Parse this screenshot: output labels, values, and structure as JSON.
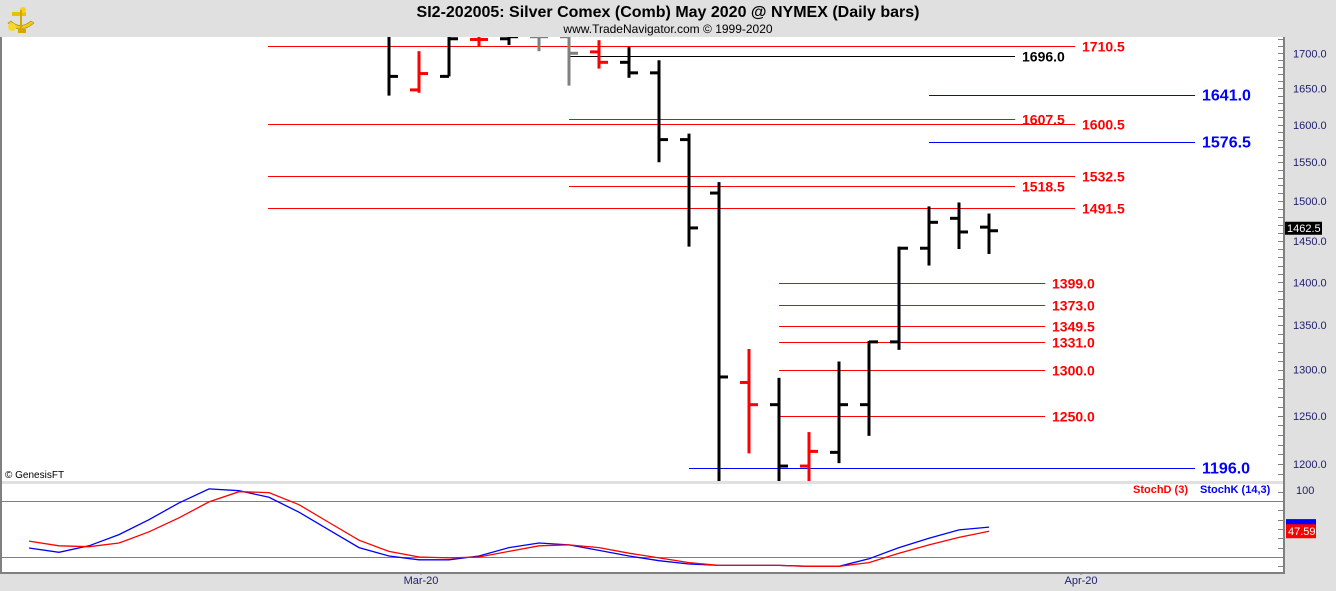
{
  "header": {
    "title": "SI2-202005:  Silver Comex (Comb) May 2020 @ NYMEX  (Daily bars)",
    "subtitle": "www.TradeNavigator.com © 1999-2020",
    "logo_icon": "sextant-logo-icon"
  },
  "copyright": "© GenesisFT",
  "colors": {
    "up_bar": "#000000",
    "down_bar": "#ff0000",
    "neutral_bar": "#808080",
    "support": "#ff0000",
    "blue_level": "#0000ff",
    "stoch_k": "#0000ff",
    "stoch_d": "#ff0000",
    "axis_text": "#202070"
  },
  "chart_data": [
    {
      "type": "ohlc",
      "scale": "log",
      "ylim": [
        1183,
        1724
      ],
      "y_ticks": [
        "1700.0",
        "1650.0",
        "1600.0",
        "1550.0",
        "1500.0",
        "1450.0",
        "1400.0",
        "1350.0",
        "1300.0",
        "1250.0",
        "1200.0"
      ],
      "x_tick_labels": [
        {
          "label": "Mar-20",
          "bar_index": 1
        },
        {
          "label": "Apr-20",
          "bar_index": 23
        }
      ],
      "last_price": "1462.5",
      "bars": [
        {
          "o": 1730,
          "h": 1735,
          "l": 1640,
          "c": 1667,
          "color": "black"
        },
        {
          "o": 1648,
          "h": 1703,
          "l": 1644,
          "c": 1671,
          "color": "red"
        },
        {
          "o": 1667,
          "h": 1724,
          "l": 1667,
          "c": 1721,
          "color": "black"
        },
        {
          "o": 1720,
          "h": 1724,
          "l": 1709,
          "c": 1720,
          "color": "red"
        },
        {
          "o": 1721,
          "h": 1724,
          "l": 1712,
          "c": 1724,
          "color": "black"
        },
        {
          "o": 1724,
          "h": 1724,
          "l": 1703,
          "c": 1724,
          "color": "gray"
        },
        {
          "o": 1724,
          "h": 1724,
          "l": 1654,
          "c": 1700,
          "color": "gray"
        },
        {
          "o": 1702,
          "h": 1719,
          "l": 1678,
          "c": 1687,
          "color": "red"
        },
        {
          "o": 1687,
          "h": 1709,
          "l": 1665,
          "c": 1672,
          "color": "black"
        },
        {
          "o": 1672,
          "h": 1690,
          "l": 1550,
          "c": 1580,
          "color": "black"
        },
        {
          "o": 1580,
          "h": 1588,
          "l": 1443,
          "c": 1466,
          "color": "black"
        },
        {
          "o": 1510,
          "h": 1524,
          "l": 1170,
          "c": 1292,
          "color": "black"
        },
        {
          "o": 1286,
          "h": 1323,
          "l": 1211,
          "c": 1262,
          "color": "red"
        },
        {
          "o": 1262,
          "h": 1291,
          "l": 1170,
          "c": 1198,
          "color": "black"
        },
        {
          "o": 1198,
          "h": 1233,
          "l": 1170,
          "c": 1213,
          "color": "red"
        },
        {
          "o": 1212,
          "h": 1309,
          "l": 1201,
          "c": 1262,
          "color": "black"
        },
        {
          "o": 1262,
          "h": 1332,
          "l": 1229,
          "c": 1331,
          "color": "black"
        },
        {
          "o": 1331,
          "h": 1443,
          "l": 1322,
          "c": 1441,
          "color": "black"
        },
        {
          "o": 1441,
          "h": 1493,
          "l": 1420,
          "c": 1473,
          "color": "black"
        },
        {
          "o": 1478,
          "h": 1498,
          "l": 1440,
          "c": 1461,
          "color": "black"
        },
        {
          "o": 1467,
          "h": 1484,
          "l": 1434,
          "c": 1462.5,
          "color": "black"
        }
      ],
      "levels": [
        {
          "value": 1710.5,
          "label": "1710.5",
          "color": "red",
          "start_bar": -4,
          "group": "far"
        },
        {
          "value": 1696.0,
          "label": "1696.0",
          "color": "black",
          "start_bar": 6,
          "group": "mid"
        },
        {
          "value": 1641.0,
          "label": "1641.0",
          "color": "blue",
          "start_bar": 18,
          "group": "blue"
        },
        {
          "value": 1607.5,
          "label": "1607.5",
          "color": "red",
          "start_bar": 6,
          "group": "mid"
        },
        {
          "value": 1600.5,
          "label": "1600.5",
          "color": "red",
          "start_bar": -4,
          "group": "far"
        },
        {
          "value": 1576.5,
          "label": "1576.5",
          "color": "blue",
          "start_bar": 18,
          "group": "blue"
        },
        {
          "value": 1532.5,
          "label": "1532.5",
          "color": "red",
          "start_bar": -4,
          "group": "far"
        },
        {
          "value": 1518.5,
          "label": "1518.5",
          "color": "red",
          "start_bar": 6,
          "group": "mid"
        },
        {
          "value": 1491.5,
          "label": "1491.5",
          "color": "red",
          "start_bar": -4,
          "group": "far"
        },
        {
          "value": 1399.0,
          "label": "1399.0",
          "color": "red",
          "start_bar": 13,
          "group": "low"
        },
        {
          "value": 1373.0,
          "label": "1373.0",
          "color": "red",
          "start_bar": 13,
          "group": "low"
        },
        {
          "value": 1349.5,
          "label": "1349.5",
          "color": "red",
          "start_bar": 13,
          "group": "low"
        },
        {
          "value": 1331.0,
          "label": "1331.0",
          "color": "red",
          "start_bar": 13,
          "group": "low"
        },
        {
          "value": 1300.0,
          "label": "1300.0",
          "color": "red",
          "start_bar": 13,
          "group": "low"
        },
        {
          "value": 1250.0,
          "label": "1250.0",
          "color": "red",
          "start_bar": 13,
          "group": "low"
        },
        {
          "value": 1196.0,
          "label": "1196.0",
          "color": "blue",
          "start_bar": 10,
          "group": "blue"
        }
      ]
    },
    {
      "type": "line",
      "ylim": [
        0,
        100
      ],
      "y_tick_label": "100",
      "reference_lines": [
        80,
        20
      ],
      "legend_placement": "top-right",
      "start_bar": -12,
      "series": [
        {
          "name": "StochD (3)",
          "color": "red",
          "last_label": "47.59",
          "values": [
            37,
            32,
            31,
            35,
            47,
            62,
            79,
            90,
            89,
            76,
            57,
            38,
            26,
            20,
            19,
            20,
            26,
            32,
            33,
            30,
            24,
            19,
            14,
            11,
            11,
            11,
            10,
            10,
            14,
            24,
            33,
            41,
            47.59
          ]
        },
        {
          "name": "StochK (14,3)",
          "color": "blue",
          "values": [
            29.6,
            25,
            32,
            44,
            60,
            78,
            93,
            91,
            84,
            68,
            49,
            30,
            21,
            17,
            17,
            21,
            30,
            35,
            33,
            27,
            21,
            16,
            12.5,
            11,
            11,
            11,
            10,
            10,
            18,
            30,
            40,
            49,
            52
          ]
        }
      ]
    }
  ]
}
